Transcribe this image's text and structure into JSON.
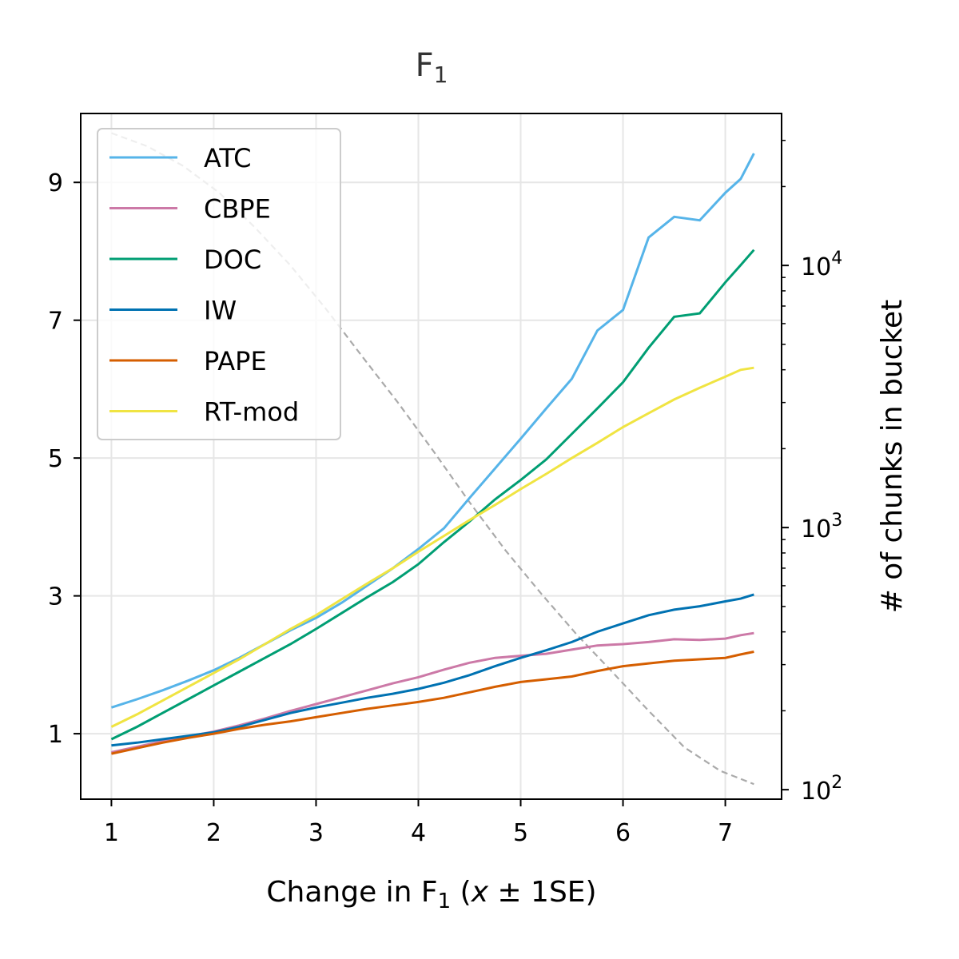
{
  "chart_data": {
    "type": "line",
    "title": "F",
    "title_sub": "1",
    "xlabel": {
      "prefix": "Change in F",
      "sub": "1",
      "suffix": " (",
      "var": "x",
      "rest": " ± 1SE)"
    },
    "ylabel_right": "# of chunks in bucket",
    "xlim": [
      0.7,
      7.55
    ],
    "ylim": [
      0.05,
      10
    ],
    "y2_scale": "log",
    "y2lim": [
      92,
      38000
    ],
    "xticks": [
      1,
      2,
      3,
      4,
      5,
      6,
      7
    ],
    "yticks": [
      1,
      3,
      5,
      7,
      9
    ],
    "y2ticks": [
      {
        "value": 100,
        "base": "10",
        "exp": "2"
      },
      {
        "value": 1000,
        "base": "10",
        "exp": "3"
      },
      {
        "value": 10000,
        "base": "10",
        "exp": "4"
      }
    ],
    "grid": true,
    "legend_position": "top-left",
    "x": [
      1.0,
      1.25,
      1.5,
      1.75,
      2.0,
      2.25,
      2.5,
      2.75,
      3.0,
      3.25,
      3.5,
      3.75,
      4.0,
      4.25,
      4.5,
      4.75,
      5.0,
      5.25,
      5.5,
      5.75,
      6.0,
      6.25,
      6.5,
      6.75,
      7.0,
      7.15,
      7.28
    ],
    "series": [
      {
        "name": "ATC",
        "color": "#56b4e9",
        "values": [
          1.38,
          1.5,
          1.63,
          1.77,
          1.92,
          2.1,
          2.3,
          2.5,
          2.68,
          2.9,
          3.15,
          3.4,
          3.68,
          3.98,
          4.42,
          4.85,
          5.28,
          5.72,
          6.15,
          6.85,
          7.15,
          8.2,
          8.5,
          8.45,
          8.85,
          9.05,
          9.42
        ]
      },
      {
        "name": "CBPE",
        "color": "#cc79a7",
        "values": [
          0.73,
          0.81,
          0.89,
          0.96,
          1.03,
          1.12,
          1.22,
          1.33,
          1.43,
          1.53,
          1.63,
          1.73,
          1.82,
          1.93,
          2.03,
          2.1,
          2.13,
          2.16,
          2.22,
          2.28,
          2.3,
          2.33,
          2.37,
          2.36,
          2.38,
          2.43,
          2.46
        ]
      },
      {
        "name": "DOC",
        "color": "#009e73",
        "values": [
          0.92,
          1.1,
          1.3,
          1.5,
          1.7,
          1.9,
          2.1,
          2.3,
          2.52,
          2.75,
          2.98,
          3.2,
          3.46,
          3.78,
          4.08,
          4.4,
          4.68,
          4.98,
          5.35,
          5.72,
          6.1,
          6.6,
          7.05,
          7.1,
          7.55,
          7.8,
          8.02
        ]
      },
      {
        "name": "IW",
        "color": "#0072b2",
        "values": [
          0.83,
          0.87,
          0.92,
          0.97,
          1.02,
          1.1,
          1.2,
          1.3,
          1.38,
          1.45,
          1.52,
          1.58,
          1.65,
          1.74,
          1.85,
          1.98,
          2.1,
          2.21,
          2.33,
          2.48,
          2.6,
          2.72,
          2.8,
          2.85,
          2.92,
          2.96,
          3.02
        ]
      },
      {
        "name": "PAPE",
        "color": "#d55e00",
        "values": [
          0.71,
          0.79,
          0.87,
          0.94,
          1.0,
          1.07,
          1.13,
          1.18,
          1.24,
          1.3,
          1.36,
          1.41,
          1.46,
          1.52,
          1.6,
          1.68,
          1.75,
          1.79,
          1.83,
          1.91,
          1.98,
          2.02,
          2.06,
          2.08,
          2.1,
          2.15,
          2.19
        ]
      },
      {
        "name": "RT-mod",
        "color": "#f0e442",
        "values": [
          1.1,
          1.28,
          1.48,
          1.68,
          1.88,
          2.08,
          2.3,
          2.52,
          2.72,
          2.95,
          3.18,
          3.4,
          3.64,
          3.87,
          4.1,
          4.32,
          4.55,
          4.77,
          5.0,
          5.22,
          5.45,
          5.65,
          5.85,
          6.02,
          6.18,
          6.28,
          6.31
        ]
      }
    ],
    "count_series": {
      "color": "#aaaaaa",
      "style": "dashed",
      "values": [
        32000,
        28500,
        24000,
        19000,
        14000,
        10000,
        6800,
        4500,
        3000,
        1950,
        1250,
        820,
        560,
        390,
        280,
        200,
        145,
        118,
        105
      ]
    },
    "count_x": [
      1.0,
      1.35,
      1.7,
      2.05,
      2.4,
      2.75,
      3.1,
      3.45,
      3.8,
      4.15,
      4.5,
      4.85,
      5.2,
      5.55,
      5.9,
      6.25,
      6.6,
      6.95,
      7.28
    ]
  }
}
